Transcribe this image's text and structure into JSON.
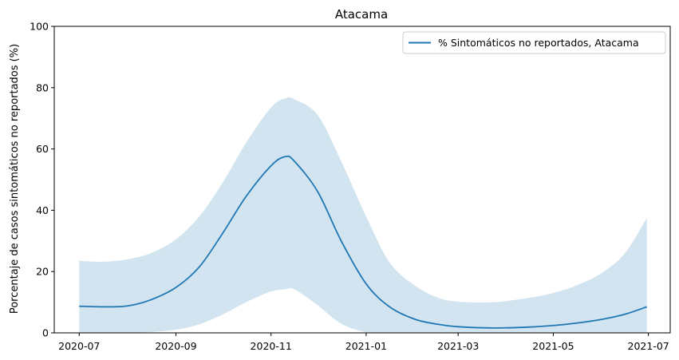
{
  "chart_data": {
    "type": "line",
    "title": "Atacama",
    "xlabel": "",
    "ylabel": "Porcentaje de casos sintomáticos no reportados (%)",
    "ylim": [
      0,
      100
    ],
    "xlim": [
      "2020-06-15",
      "2021-07-15"
    ],
    "x_ticks": [
      "2020-07",
      "2020-09",
      "2020-11",
      "2021-01",
      "2021-03",
      "2021-05",
      "2021-07"
    ],
    "y_ticks": [
      0,
      20,
      40,
      60,
      80,
      100
    ],
    "grid": false,
    "legend_position": "top-right",
    "series": [
      {
        "name": "% Sintomáticos no reportados, Atacama",
        "color": "#1f77b4",
        "band_color": "#1f77b4",
        "x": [
          "2020-07-01",
          "2020-07-16",
          "2020-08-01",
          "2020-08-16",
          "2020-09-01",
          "2020-09-16",
          "2020-10-01",
          "2020-10-16",
          "2020-11-01",
          "2020-11-10",
          "2020-11-16",
          "2020-12-01",
          "2020-12-16",
          "2021-01-01",
          "2021-01-16",
          "2021-02-01",
          "2021-02-16",
          "2021-03-01",
          "2021-03-24",
          "2021-04-16",
          "2021-05-01",
          "2021-05-16",
          "2021-06-01",
          "2021-06-16",
          "2021-06-30"
        ],
        "values": [
          8.7,
          8.5,
          8.8,
          10.8,
          14.8,
          21.5,
          32.5,
          44.5,
          54.5,
          57.5,
          56.0,
          46.0,
          30.0,
          16.0,
          8.5,
          4.5,
          2.8,
          2.0,
          1.6,
          1.9,
          2.4,
          3.2,
          4.4,
          6.1,
          8.5
        ],
        "lower": [
          0,
          0,
          0,
          0.3,
          1.0,
          2.8,
          6.0,
          10.0,
          13.5,
          14.2,
          14.2,
          9.0,
          3.0,
          0.2,
          0,
          0,
          0,
          0,
          0,
          0,
          0,
          0,
          0,
          0,
          0
        ],
        "upper": [
          23.5,
          23.2,
          24.0,
          26.0,
          30.5,
          38.0,
          49.0,
          62.0,
          73.5,
          76.5,
          76.2,
          71.0,
          56.0,
          38.0,
          23.0,
          15.5,
          11.5,
          10.2,
          10.0,
          11.5,
          13.0,
          15.5,
          19.5,
          26.0,
          37.5
        ]
      }
    ]
  }
}
